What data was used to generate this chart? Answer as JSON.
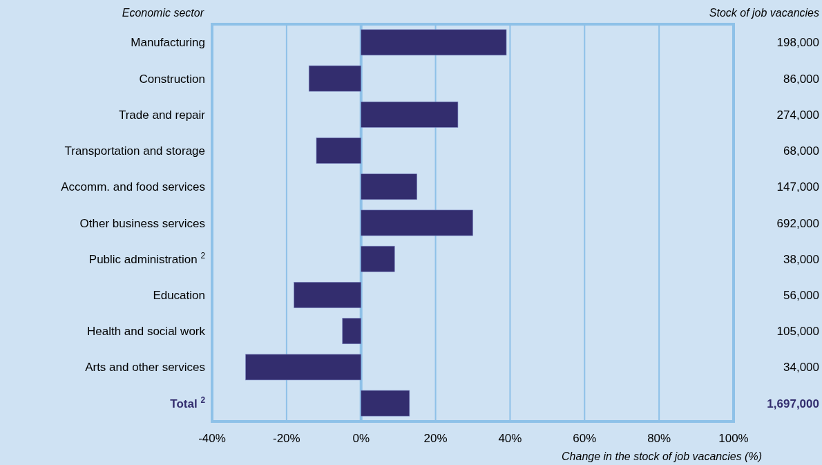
{
  "chart_data": {
    "type": "bar",
    "orientation": "horizontal",
    "ylabel": "Economic sector",
    "y2label": "Stock of job vacancies",
    "xlabel": "Change in the stock of job vacancies (%)",
    "categories": [
      "Manufacturing",
      "Construction",
      "Trade and repair",
      "Transportation and storage",
      "Accomm. and food services",
      "Other business services",
      "Public administration $^{2}$",
      "Education",
      "Health and social work",
      "Arts and other services",
      "Total $^{2}$"
    ],
    "values": [
      39,
      -14,
      26,
      -12,
      15,
      30,
      9,
      -18,
      -5,
      -31,
      13
    ],
    "color": "#332d6e",
    "xlim": [
      -40,
      100
    ],
    "xticks": [
      {
        "value": -40,
        "label": "-40%"
      },
      {
        "value": -20,
        "label": "-20%"
      },
      {
        "value": 0,
        "label": "0%"
      },
      {
        "value": 20,
        "label": "20%"
      },
      {
        "value": 40,
        "label": "40%"
      },
      {
        "value": 60,
        "label": "60%"
      },
      {
        "value": 80,
        "label": "80%"
      },
      {
        "value": 100,
        "label": "100%"
      }
    ],
    "grid": "x",
    "ref_lines": [
      {
        "axis": "x",
        "value": 0,
        "color": "#8ec1e8"
      }
    ],
    "annotations": [
      "198,000",
      "86,000",
      "274,000",
      "68,000",
      "147,000",
      "692,000",
      "38,000",
      "56,000",
      "105,000",
      "34,000",
      "1,697,000"
    ]
  }
}
